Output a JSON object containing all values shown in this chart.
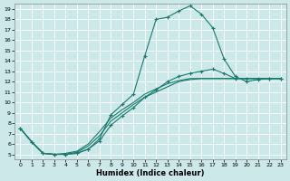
{
  "xlabel": "Humidex (Indice chaleur)",
  "background_color": "#cce8e8",
  "grid_color": "#ffffff",
  "line_color": "#1a7a6e",
  "xlim": [
    -0.5,
    23.5
  ],
  "ylim": [
    4.5,
    19.5
  ],
  "xticks": [
    0,
    1,
    2,
    3,
    4,
    5,
    6,
    7,
    8,
    9,
    10,
    11,
    12,
    13,
    14,
    15,
    16,
    17,
    18,
    19,
    20,
    21,
    22,
    23
  ],
  "yticks": [
    5,
    6,
    7,
    8,
    9,
    10,
    11,
    12,
    13,
    14,
    15,
    16,
    17,
    18,
    19
  ],
  "line1_x": [
    0,
    1,
    2,
    3,
    4,
    5,
    6,
    7,
    8,
    9,
    10,
    11,
    12,
    13,
    14,
    15,
    16,
    17,
    18,
    19,
    20,
    21,
    22,
    23
  ],
  "line1_y": [
    7.5,
    6.2,
    5.1,
    5.0,
    5.0,
    5.1,
    5.5,
    6.5,
    8.8,
    9.8,
    10.8,
    14.5,
    18.0,
    18.2,
    18.8,
    19.3,
    18.5,
    17.2,
    14.2,
    12.5,
    12.0,
    12.2,
    12.3,
    12.3
  ],
  "line2_x": [
    0,
    1,
    2,
    3,
    4,
    5,
    6,
    7,
    8,
    9,
    10,
    11,
    12,
    13,
    14,
    15,
    16,
    17,
    18,
    19,
    20,
    21,
    22,
    23
  ],
  "line2_y": [
    7.5,
    6.2,
    5.1,
    5.0,
    5.0,
    5.1,
    5.5,
    6.3,
    7.8,
    8.7,
    9.5,
    10.5,
    11.2,
    12.0,
    12.5,
    12.8,
    13.0,
    13.2,
    12.8,
    12.3,
    12.3,
    12.3,
    12.3,
    12.3
  ],
  "line3_x": [
    0,
    1,
    2,
    3,
    4,
    5,
    6,
    7,
    8,
    9,
    10,
    11,
    12,
    13,
    14,
    15,
    16,
    17,
    18,
    19,
    20,
    21,
    22,
    23
  ],
  "line3_y": [
    7.5,
    6.2,
    5.1,
    5.0,
    5.0,
    5.2,
    5.8,
    6.8,
    8.2,
    9.0,
    9.8,
    10.5,
    11.0,
    11.5,
    12.0,
    12.2,
    12.3,
    12.3,
    12.3,
    12.3,
    12.3,
    12.3,
    12.3,
    12.3
  ],
  "line4_x": [
    0,
    1,
    2,
    3,
    4,
    5,
    6,
    7,
    8,
    9,
    10,
    11,
    12,
    13,
    14,
    15,
    16,
    17,
    18,
    19,
    20,
    21,
    22,
    23
  ],
  "line4_y": [
    7.5,
    6.2,
    5.1,
    5.0,
    5.1,
    5.3,
    6.0,
    7.2,
    8.5,
    9.3,
    10.0,
    10.8,
    11.3,
    11.8,
    12.1,
    12.3,
    12.3,
    12.3,
    12.3,
    12.3,
    12.3,
    12.3,
    12.3,
    12.3
  ]
}
